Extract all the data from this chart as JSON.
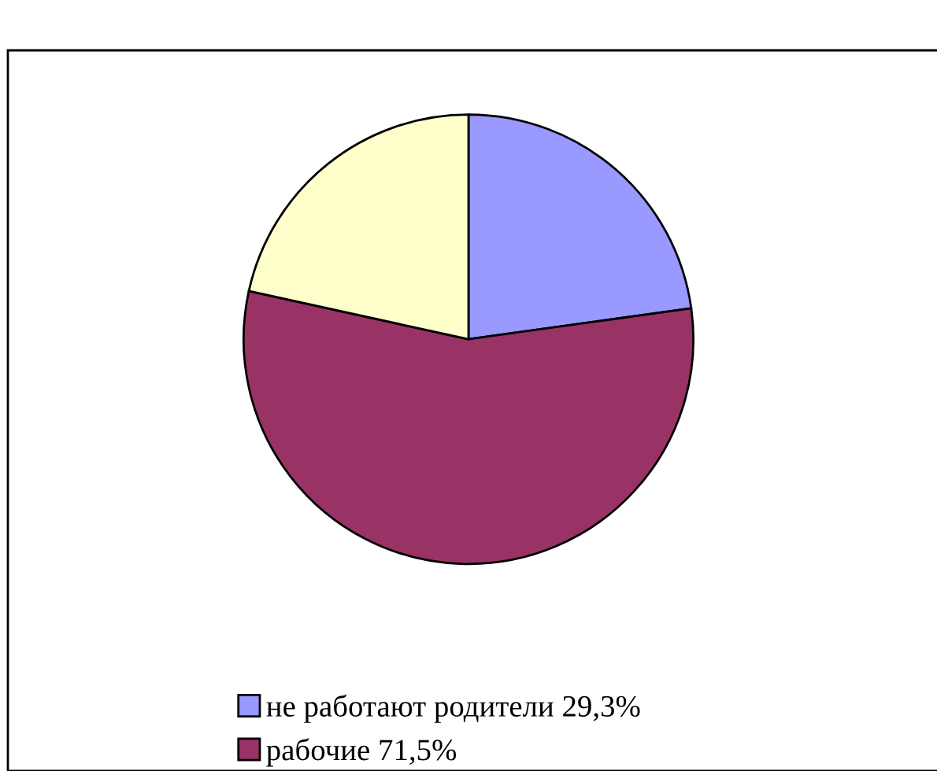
{
  "chart_data": {
    "type": "pie",
    "categories": [
      "не работают родители 29,3%",
      "рабочие 71,5%",
      null
    ],
    "values": [
      29.3,
      71.5,
      27.7
    ],
    "colors": [
      "#9999ff",
      "#993366",
      "#ffffcc"
    ],
    "legend": "bottom"
  }
}
